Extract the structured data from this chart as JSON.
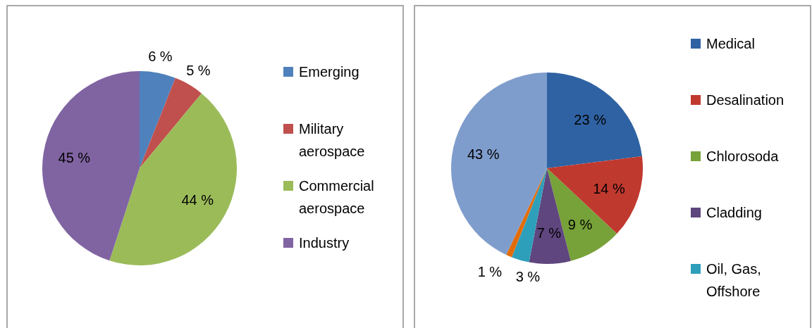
{
  "chart_data": [
    {
      "type": "pie",
      "categories": [
        "Emerging",
        "Military aerospace",
        "Commercial aerospace",
        "Industry"
      ],
      "values": [
        6,
        5,
        44,
        45
      ],
      "colors": [
        "#4f81bd",
        "#c0504d",
        "#9bbb59",
        "#8064a2"
      ],
      "value_labels": [
        "6 %",
        "5 %",
        "44 %",
        "45 %"
      ],
      "legend": "right"
    },
    {
      "type": "pie",
      "categories": [
        "Medical",
        "Desalination",
        "Chlorosoda",
        "Cladding",
        "Oil, Gas, Offshore",
        null,
        null
      ],
      "values": [
        23,
        14,
        9,
        7,
        3,
        1,
        43
      ],
      "colors": [
        "#2f62a3",
        "#c0392f",
        "#77a139",
        "#5f467e",
        "#2e9fba",
        "#e36c0a",
        "#7f9dcc"
      ],
      "value_labels": [
        "23 %",
        "14 %",
        "9 %",
        "7 %",
        "3 %",
        "1 %",
        "43 %"
      ],
      "legend": "right"
    }
  ]
}
